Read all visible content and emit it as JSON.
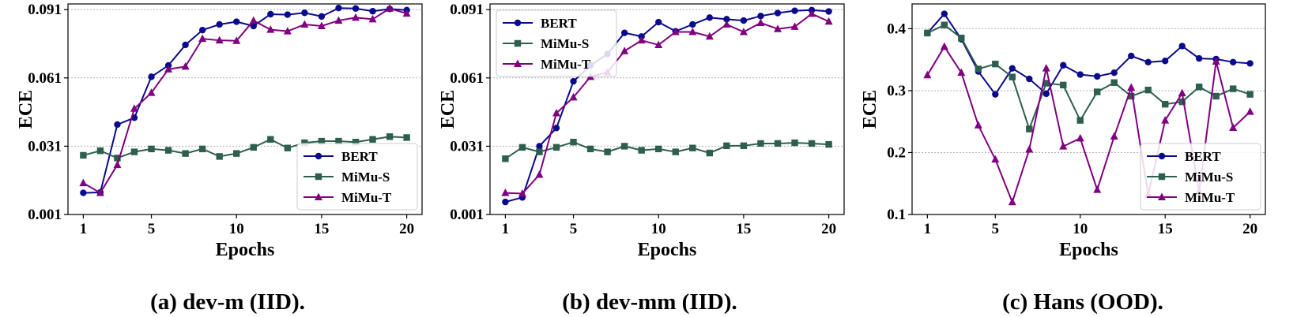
{
  "colors": {
    "BERT": "#0a0a8c",
    "MiMu-S": "#2d5e4f",
    "MiMu-T": "#800080",
    "grid": "#b0b0b0"
  },
  "chart_data": [
    {
      "type": "line",
      "caption": "(a) dev-m (IID).",
      "xlabel": "Epochs",
      "ylabel": "ECE",
      "x": [
        1,
        2,
        3,
        4,
        5,
        6,
        7,
        8,
        9,
        10,
        11,
        12,
        13,
        14,
        15,
        16,
        17,
        18,
        19,
        20
      ],
      "xticks": [
        "1",
        "5",
        "10",
        "15",
        "20"
      ],
      "xtick_values": [
        1,
        5,
        10,
        15,
        20
      ],
      "yticks": [
        "0.001",
        "0.031",
        "0.061",
        "0.091"
      ],
      "ytick_values": [
        0.001,
        0.031,
        0.061,
        0.091
      ],
      "xlim": [
        0.1,
        20.9
      ],
      "ylim": [
        0.001,
        0.0935
      ],
      "legend": "lower-right",
      "series": [
        {
          "name": "BERT",
          "marker": "circle",
          "values": [
            0.0105,
            0.0107,
            0.0405,
            0.0435,
            0.0615,
            0.0665,
            0.0755,
            0.082,
            0.0845,
            0.0857,
            0.0838,
            0.089,
            0.0888,
            0.0896,
            0.088,
            0.0917,
            0.0915,
            0.0903,
            0.0913,
            0.0908
          ]
        },
        {
          "name": "MiMu-S",
          "marker": "square",
          "values": [
            0.027,
            0.029,
            0.0258,
            0.0285,
            0.0298,
            0.0292,
            0.0278,
            0.0298,
            0.0265,
            0.0278,
            0.0305,
            0.034,
            0.0302,
            0.0325,
            0.0332,
            0.0332,
            0.0328,
            0.034,
            0.0352,
            0.0348
          ]
        },
        {
          "name": "MiMu-T",
          "marker": "triangle",
          "values": [
            0.0148,
            0.0105,
            0.0228,
            0.0475,
            0.0545,
            0.0648,
            0.066,
            0.0782,
            0.0775,
            0.0773,
            0.0862,
            0.0822,
            0.0815,
            0.0845,
            0.0838,
            0.0862,
            0.0875,
            0.0868,
            0.0915,
            0.0893
          ]
        }
      ]
    },
    {
      "type": "line",
      "caption": "(b) dev-mm (IID).",
      "xlabel": "Epochs",
      "ylabel": "ECE",
      "x": [
        1,
        2,
        3,
        4,
        5,
        6,
        7,
        8,
        9,
        10,
        11,
        12,
        13,
        14,
        15,
        16,
        17,
        18,
        19,
        20
      ],
      "xticks": [
        "1",
        "5",
        "10",
        "15",
        "20"
      ],
      "xtick_values": [
        1,
        5,
        10,
        15,
        20
      ],
      "yticks": [
        "0.001",
        "0.031",
        "0.061",
        "0.091"
      ],
      "ytick_values": [
        0.001,
        0.031,
        0.061,
        0.091
      ],
      "xlim": [
        0.1,
        20.9
      ],
      "ylim": [
        0.001,
        0.0935
      ],
      "legend": "upper-left",
      "series": [
        {
          "name": "BERT",
          "marker": "circle",
          "values": [
            0.0065,
            0.0085,
            0.031,
            0.039,
            0.0595,
            0.0665,
            0.0715,
            0.0808,
            0.0792,
            0.0855,
            0.0815,
            0.0845,
            0.0875,
            0.0868,
            0.0862,
            0.0882,
            0.0895,
            0.0905,
            0.0908,
            0.0902
          ]
        },
        {
          "name": "MiMu-S",
          "marker": "square",
          "values": [
            0.0255,
            0.0305,
            0.0285,
            0.0305,
            0.0328,
            0.0298,
            0.0285,
            0.031,
            0.0292,
            0.0298,
            0.0285,
            0.0302,
            0.028,
            0.0312,
            0.0312,
            0.0322,
            0.0322,
            0.0325,
            0.0322,
            0.0318
          ]
        },
        {
          "name": "MiMu-T",
          "marker": "triangle",
          "values": [
            0.0105,
            0.0102,
            0.0185,
            0.0455,
            0.0525,
            0.0615,
            0.0635,
            0.0728,
            0.0775,
            0.0755,
            0.0812,
            0.0812,
            0.0792,
            0.0845,
            0.0812,
            0.0852,
            0.0825,
            0.0835,
            0.0892,
            0.0858
          ]
        }
      ]
    },
    {
      "type": "line",
      "caption": "(c) Hans (OOD).",
      "xlabel": "Epochs",
      "ylabel": "ECE",
      "x": [
        1,
        2,
        3,
        4,
        5,
        6,
        7,
        8,
        9,
        10,
        11,
        12,
        13,
        14,
        15,
        16,
        17,
        18,
        19,
        20
      ],
      "xticks": [
        "1",
        "5",
        "10",
        "15",
        "20"
      ],
      "xtick_values": [
        1,
        5,
        10,
        15,
        20
      ],
      "yticks": [
        "0.1",
        "0.2",
        "0.3",
        "0.4"
      ],
      "ytick_values": [
        0.1,
        0.2,
        0.3,
        0.4
      ],
      "xlim": [
        0.1,
        20.9
      ],
      "ylim": [
        0.1,
        0.44
      ],
      "legend": "lower-right",
      "series": [
        {
          "name": "BERT",
          "marker": "circle",
          "values": [
            0.393,
            0.424,
            0.383,
            0.331,
            0.294,
            0.336,
            0.319,
            0.295,
            0.341,
            0.326,
            0.323,
            0.329,
            0.356,
            0.346,
            0.348,
            0.372,
            0.352,
            0.351,
            0.346,
            0.344
          ]
        },
        {
          "name": "MiMu-S",
          "marker": "square",
          "values": [
            0.393,
            0.406,
            0.385,
            0.335,
            0.343,
            0.322,
            0.238,
            0.312,
            0.309,
            0.252,
            0.298,
            0.313,
            0.291,
            0.301,
            0.278,
            0.282,
            0.306,
            0.291,
            0.303,
            0.294
          ]
        },
        {
          "name": "MiMu-T",
          "marker": "triangle",
          "values": [
            0.325,
            0.371,
            0.329,
            0.244,
            0.189,
            0.12,
            0.205,
            0.336,
            0.21,
            0.223,
            0.14,
            0.226,
            0.305,
            0.132,
            0.252,
            0.296,
            0.137,
            0.347,
            0.24,
            0.266
          ]
        }
      ]
    }
  ]
}
